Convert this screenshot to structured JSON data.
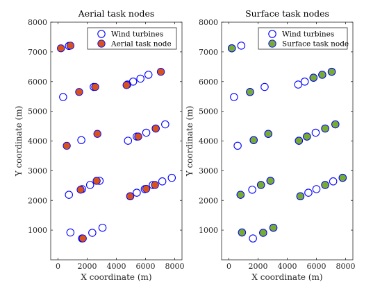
{
  "chart_data": [
    {
      "type": "scatter",
      "title": "Aerial task nodes",
      "xlabel": "X coordinate (m)",
      "ylabel": "Y coordinate (m)",
      "xlim": [
        -500,
        8500
      ],
      "ylim": [
        0,
        8000
      ],
      "xticks": [
        0,
        2000,
        4000,
        6000,
        8000
      ],
      "yticks": [
        1000,
        2000,
        3000,
        4000,
        5000,
        6000,
        7000,
        8000
      ],
      "grid": false,
      "legend_placement": "top-right",
      "series": [
        {
          "name": "Wind turbines",
          "marker": "open-circle",
          "color": "#0000ff",
          "points": [
            [
              750,
              7200
            ],
            [
              350,
              5480
            ],
            [
              1600,
              4030
            ],
            [
              2450,
              5820
            ],
            [
              4800,
              4010
            ],
            [
              5150,
              6000
            ],
            [
              5650,
              6100
            ],
            [
              6200,
              6230
            ],
            [
              6700,
              4420
            ],
            [
              7350,
              4560
            ],
            [
              5400,
              4150
            ],
            [
              6050,
              4280
            ],
            [
              4750,
              5900
            ],
            [
              750,
              2190
            ],
            [
              1650,
              2380
            ],
            [
              2200,
              2520
            ],
            [
              2850,
              2660
            ],
            [
              5400,
              2260
            ],
            [
              5950,
              2380
            ],
            [
              6500,
              2520
            ],
            [
              7150,
              2640
            ],
            [
              7800,
              2760
            ],
            [
              4950,
              2140
            ],
            [
              850,
              920
            ],
            [
              1650,
              720
            ],
            [
              2350,
              910
            ],
            [
              3050,
              1080
            ]
          ]
        },
        {
          "name": "Aerial task node",
          "marker": "filled-circle",
          "color": "#d95319",
          "points": [
            [
              200,
              7120
            ],
            [
              850,
              7210
            ],
            [
              1450,
              5650
            ],
            [
              2550,
              5820
            ],
            [
              4700,
              5880
            ],
            [
              7050,
              6330
            ],
            [
              600,
              3840
            ],
            [
              2700,
              4240
            ],
            [
              5500,
              4150
            ],
            [
              6700,
              4420
            ],
            [
              1550,
              2360
            ],
            [
              2650,
              2660
            ],
            [
              4950,
              2140
            ],
            [
              6050,
              2390
            ],
            [
              6650,
              2520
            ],
            [
              1700,
              720
            ]
          ]
        }
      ]
    },
    {
      "type": "scatter",
      "title": "Surface task nodes",
      "xlabel": "X coordinate (m)",
      "ylabel": "Y coordinate (m)",
      "xlim": [
        -500,
        8500
      ],
      "ylim": [
        0,
        8000
      ],
      "xticks": [
        0,
        2000,
        4000,
        6000,
        8000
      ],
      "yticks": [
        1000,
        2000,
        3000,
        4000,
        5000,
        6000,
        7000,
        8000
      ],
      "grid": false,
      "legend_placement": "top-right",
      "series": [
        {
          "name": "Wind turbines",
          "marker": "open-circle",
          "color": "#0000ff",
          "points": [
            [
              200,
              7120
            ],
            [
              850,
              7210
            ],
            [
              350,
              5480
            ],
            [
              1450,
              5650
            ],
            [
              2450,
              5820
            ],
            [
              4750,
              5900
            ],
            [
              5200,
              6000
            ],
            [
              5800,
              6130
            ],
            [
              6400,
              6230
            ],
            [
              7050,
              6330
            ],
            [
              600,
              3840
            ],
            [
              1700,
              4030
            ],
            [
              2700,
              4240
            ],
            [
              4800,
              4010
            ],
            [
              5350,
              4150
            ],
            [
              5950,
              4280
            ],
            [
              6600,
              4420
            ],
            [
              7300,
              4560
            ],
            [
              800,
              2190
            ],
            [
              1600,
              2360
            ],
            [
              2200,
              2520
            ],
            [
              2850,
              2660
            ],
            [
              4900,
              2140
            ],
            [
              5450,
              2260
            ],
            [
              6000,
              2380
            ],
            [
              6600,
              2520
            ],
            [
              7150,
              2640
            ],
            [
              7800,
              2760
            ],
            [
              900,
              920
            ],
            [
              1650,
              720
            ],
            [
              2350,
              910
            ],
            [
              3050,
              1080
            ]
          ]
        },
        {
          "name": "Surface task node",
          "marker": "filled-circle",
          "color": "#77ac30",
          "points": [
            [
              200,
              7120
            ],
            [
              1450,
              5650
            ],
            [
              5800,
              6130
            ],
            [
              6400,
              6230
            ],
            [
              7050,
              6330
            ],
            [
              1700,
              4030
            ],
            [
              2700,
              4240
            ],
            [
              4800,
              4010
            ],
            [
              5350,
              4150
            ],
            [
              6600,
              4420
            ],
            [
              7300,
              4560
            ],
            [
              800,
              2190
            ],
            [
              2200,
              2520
            ],
            [
              2850,
              2660
            ],
            [
              4900,
              2140
            ],
            [
              6600,
              2520
            ],
            [
              7800,
              2760
            ],
            [
              900,
              920
            ],
            [
              2350,
              910
            ],
            [
              3050,
              1080
            ]
          ]
        }
      ]
    }
  ]
}
